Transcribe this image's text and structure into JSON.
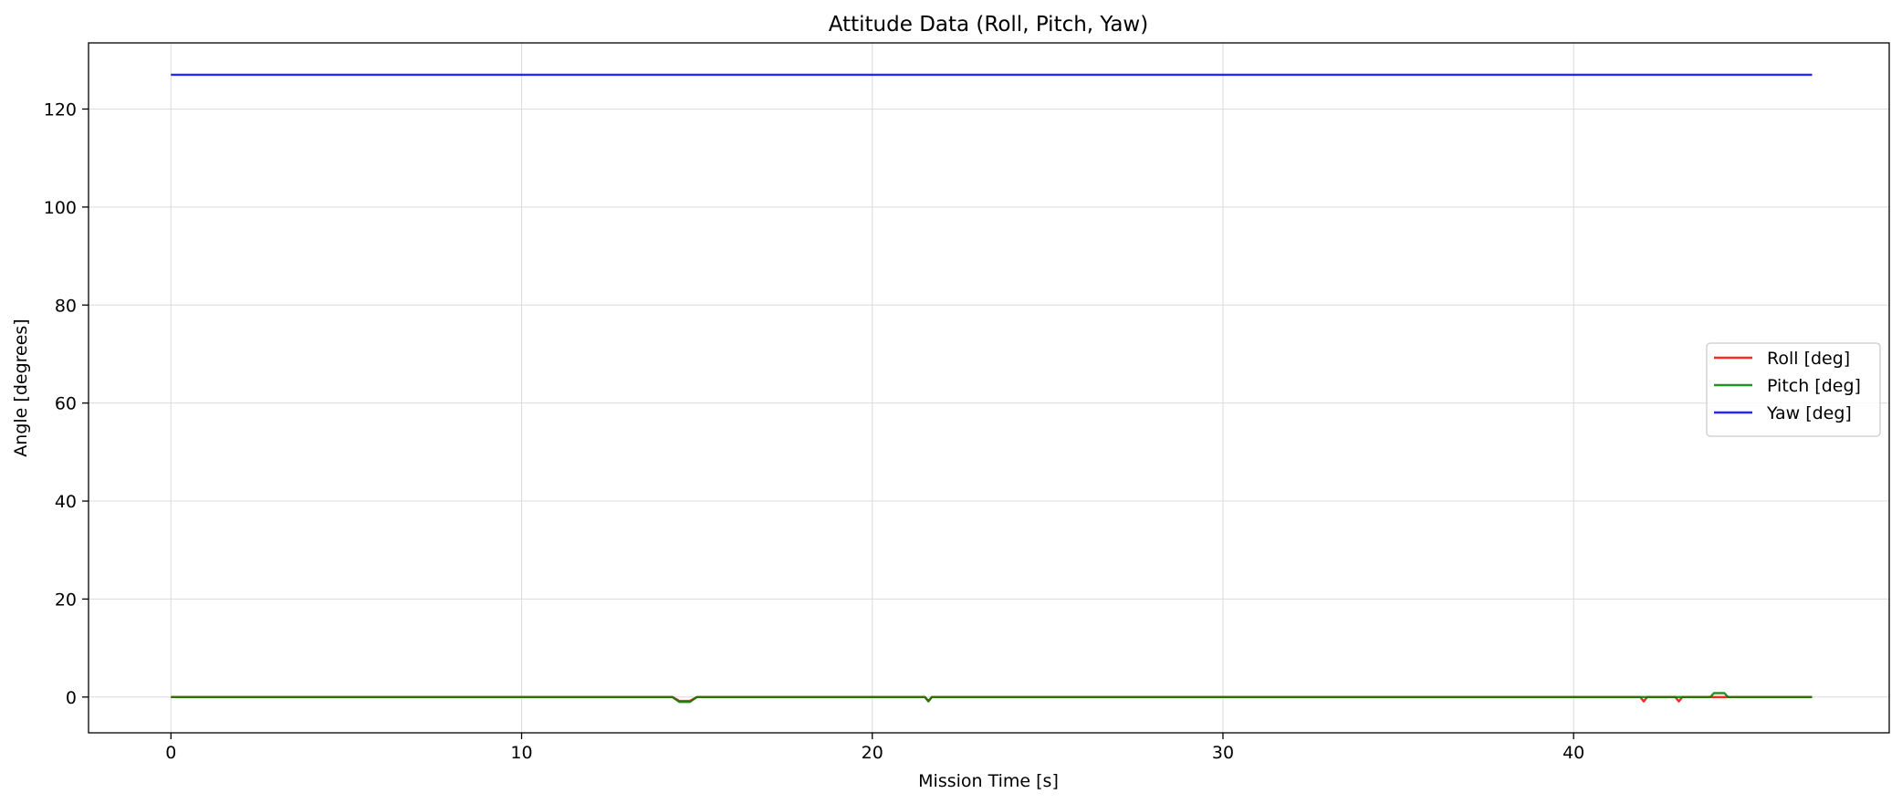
{
  "chart_data": {
    "type": "line",
    "title": "Attitude Data (Roll, Pitch, Yaw)",
    "xlabel": "Mission Time [s]",
    "ylabel": "Angle [degrees]",
    "xlim": [
      -2.35,
      49.0
    ],
    "ylim": [
      -7.3,
      133.5
    ],
    "xticks": [
      0,
      10,
      20,
      30,
      40
    ],
    "yticks": [
      0,
      20,
      40,
      60,
      80,
      100,
      120
    ],
    "grid": true,
    "legend_position": "center-right",
    "series": [
      {
        "name": "Roll [deg]",
        "color": "#ff0000",
        "points": [
          [
            0,
            0
          ],
          [
            14.3,
            0
          ],
          [
            14.5,
            -0.8
          ],
          [
            14.8,
            -0.8
          ],
          [
            15.0,
            0
          ],
          [
            21.5,
            0
          ],
          [
            21.6,
            -0.8
          ],
          [
            21.7,
            0
          ],
          [
            41.9,
            0
          ],
          [
            42.0,
            -0.9
          ],
          [
            42.1,
            0
          ],
          [
            42.9,
            0
          ],
          [
            43.0,
            -0.9
          ],
          [
            43.1,
            0
          ],
          [
            46.8,
            0
          ]
        ]
      },
      {
        "name": "Pitch [deg]",
        "color": "#008000",
        "points": [
          [
            0,
            0
          ],
          [
            14.3,
            0
          ],
          [
            14.5,
            -1.0
          ],
          [
            14.8,
            -1.0
          ],
          [
            15.0,
            0
          ],
          [
            21.5,
            0
          ],
          [
            21.6,
            -0.9
          ],
          [
            21.7,
            0
          ],
          [
            43.9,
            0
          ],
          [
            44.0,
            0.8
          ],
          [
            44.3,
            0.8
          ],
          [
            44.4,
            0
          ],
          [
            46.8,
            0
          ]
        ]
      },
      {
        "name": "Yaw [deg]",
        "color": "#0000ff",
        "points": [
          [
            0,
            127.0
          ],
          [
            46.8,
            127.0
          ]
        ]
      }
    ]
  }
}
